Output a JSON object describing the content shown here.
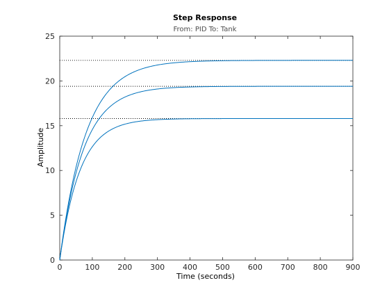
{
  "chart_data": {
    "type": "line",
    "title": "Step Response",
    "subtitle": "From: PID  To: Tank",
    "xlabel": "Time (seconds)",
    "ylabel": "Amplitude",
    "xlim": [
      0,
      900
    ],
    "ylim": [
      0,
      25
    ],
    "xticks": [
      0,
      100,
      200,
      300,
      400,
      500,
      600,
      700,
      800,
      900
    ],
    "yticks": [
      0,
      5,
      10,
      15,
      20,
      25
    ],
    "grid": false,
    "line_color": "#0072bd",
    "final_value_style": "dotted black",
    "series": [
      {
        "final_value": 22.3,
        "time_constant": 80,
        "end_time": 520,
        "x": [
          0,
          50,
          100,
          150,
          200,
          250,
          300,
          400,
          520
        ],
        "y": [
          0,
          10.0,
          15.9,
          19.0,
          20.6,
          21.4,
          21.8,
          22.2,
          22.3
        ]
      },
      {
        "final_value": 19.4,
        "time_constant": 72,
        "end_time": 555,
        "x": [
          0,
          50,
          100,
          150,
          200,
          250,
          300,
          400,
          555
        ],
        "y": [
          0,
          9.7,
          14.6,
          17.1,
          18.3,
          18.9,
          19.2,
          19.35,
          19.4
        ]
      },
      {
        "final_value": 15.8,
        "time_constant": 62,
        "end_time": 415,
        "x": [
          0,
          50,
          100,
          150,
          200,
          250,
          300,
          415
        ],
        "y": [
          0,
          8.6,
          12.5,
          14.4,
          15.2,
          15.5,
          15.7,
          15.8
        ]
      }
    ]
  }
}
